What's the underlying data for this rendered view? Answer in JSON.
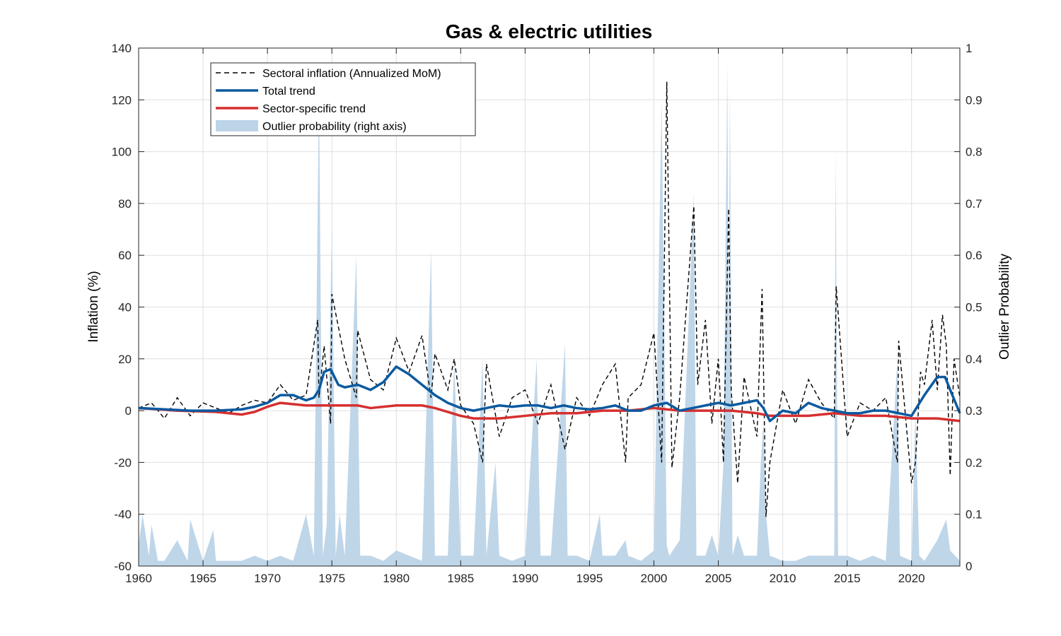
{
  "chart_data": {
    "type": "line",
    "title": "Gas & electric utilities",
    "xlabel": "",
    "ylabel": "Inflation (%)",
    "y2label": "Outlier Probability",
    "xlim": [
      1960,
      2023.75
    ],
    "ylim": [
      -60,
      140
    ],
    "y2lim": [
      0,
      1
    ],
    "xticks": [
      1960,
      1965,
      1970,
      1975,
      1980,
      1985,
      1990,
      1995,
      2000,
      2005,
      2010,
      2015,
      2020
    ],
    "yticks": [
      -60,
      -40,
      -20,
      0,
      20,
      40,
      60,
      80,
      100,
      120,
      140
    ],
    "y2ticks": [
      0,
      0.1,
      0.2,
      0.3,
      0.4,
      0.5,
      0.6,
      0.7,
      0.8,
      0.9,
      1
    ],
    "grid": true,
    "legend_position": "top-left",
    "legend": [
      {
        "label": "Sectoral inflation (Annualized MoM)",
        "style": "dashed",
        "color": "#000000"
      },
      {
        "label": "Total trend",
        "style": "solid",
        "color": "#0b5aa0"
      },
      {
        "label": "Sector-specific trend",
        "style": "solid",
        "color": "#d62f2f"
      },
      {
        "label": "Outlier probability (right axis)",
        "style": "area",
        "color": "#bcd4e8"
      }
    ],
    "colors": {
      "sectoral": "#000000",
      "total_trend": "#0b5aa0",
      "sector_trend": "#d62f2f",
      "outlier_area": "#bcd4e8"
    },
    "series": [
      {
        "name": "Total trend",
        "x": [
          1960,
          1962,
          1964,
          1966,
          1968,
          1969,
          1970,
          1971,
          1972,
          1973,
          1973.6,
          1974,
          1974.4,
          1974.9,
          1975.5,
          1976,
          1977,
          1978,
          1979,
          1980,
          1981,
          1982,
          1983,
          1984,
          1985,
          1986,
          1987,
          1988,
          1989,
          1990,
          1991,
          1992,
          1993,
          1994,
          1995,
          1996,
          1997,
          1998,
          1999,
          2000,
          2001,
          2002,
          2003,
          2004,
          2005,
          2006,
          2007,
          2008,
          2008.5,
          2009,
          2010,
          2011,
          2012,
          2013,
          2014,
          2015,
          2016,
          2017,
          2018,
          2019,
          2020,
          2021,
          2022,
          2022.6,
          2023,
          2023.75
        ],
        "y": [
          1,
          0.5,
          0,
          0,
          0.5,
          1.5,
          3,
          6,
          6,
          4,
          5,
          8,
          15,
          16,
          10,
          9,
          10,
          8,
          11,
          17,
          14,
          10,
          6,
          3,
          1,
          0,
          1,
          2,
          1.5,
          2,
          2,
          1,
          2,
          1,
          0.5,
          1,
          2,
          0,
          0,
          2,
          3,
          0,
          1,
          2,
          3,
          2,
          3,
          4,
          1,
          -4,
          0,
          -1,
          3,
          1,
          0,
          -1,
          -1,
          0,
          0,
          -1,
          -2,
          6,
          13,
          13,
          8,
          -1
        ]
      },
      {
        "name": "Sector-specific trend",
        "x": [
          1960,
          1963,
          1966,
          1968,
          1969,
          1970,
          1971,
          1973,
          1975,
          1977,
          1978,
          1980,
          1982,
          1983,
          1985,
          1986,
          1988,
          1990,
          1992,
          1994,
          1996,
          1998,
          2000,
          2002,
          2004,
          2006,
          2008,
          2009,
          2012,
          2014,
          2016,
          2018,
          2020,
          2022,
          2023.75
        ],
        "y": [
          1,
          0,
          -0.5,
          -1.5,
          -0.5,
          1.5,
          3,
          2,
          2,
          2,
          1,
          2,
          2,
          1,
          -2,
          -3,
          -3,
          -2,
          -1,
          -1,
          0,
          0,
          1,
          0,
          0,
          0,
          -1,
          -2,
          -2,
          -1,
          -2,
          -2,
          -3,
          -3,
          -4
        ]
      },
      {
        "name": "Sectoral inflation (Annualized MoM)",
        "x": [
          1960,
          1961,
          1962,
          1963,
          1964,
          1965,
          1966,
          1967,
          1968,
          1969,
          1970,
          1971,
          1972,
          1973,
          1973.9,
          1974,
          1974.4,
          1974.9,
          1975,
          1976,
          1976.9,
          1977,
          1978,
          1979,
          1980,
          1981,
          1982,
          1982.7,
          1983,
          1984,
          1984.5,
          1985,
          1986,
          1986.7,
          1987,
          1988,
          1989,
          1990,
          1991,
          1992,
          1993.1,
          1994,
          1995,
          1996,
          1997,
          1997.8,
          1998,
          1999,
          2000,
          2000.6,
          2001,
          2001.4,
          2002,
          2003.1,
          2003.4,
          2004,
          2004.5,
          2005,
          2005.4,
          2005.8,
          2006,
          2006.5,
          2007,
          2008,
          2008.4,
          2008.7,
          2009,
          2010,
          2011,
          2012,
          2013,
          2014,
          2014.15,
          2015,
          2016,
          2017,
          2018,
          2018.9,
          2019,
          2020,
          2020.3,
          2020.7,
          2021,
          2021.6,
          2022,
          2022.4,
          2022.7,
          2023,
          2023.3,
          2023.75
        ],
        "y": [
          1,
          3,
          -3,
          5,
          -2,
          3,
          1,
          -1,
          2,
          4,
          3,
          10,
          4,
          6,
          35,
          5,
          25,
          -5,
          45,
          20,
          5,
          31,
          12,
          8,
          28,
          15,
          29,
          5,
          22,
          8,
          20,
          2,
          -5,
          -20,
          18,
          -10,
          5,
          8,
          -5,
          10,
          -15,
          5,
          -2,
          10,
          18,
          -20,
          5,
          10,
          30,
          -20,
          127,
          -22,
          5,
          79,
          10,
          35,
          -5,
          20,
          -20,
          78,
          8,
          -28,
          13,
          -10,
          47,
          -41,
          -20,
          8,
          -5,
          12,
          3,
          -3,
          48,
          -10,
          3,
          0,
          5,
          -20,
          27,
          -28,
          -20,
          15,
          10,
          35,
          8,
          37,
          25,
          -25,
          20,
          5
        ]
      },
      {
        "name": "Outlier probability (right axis)",
        "x": [
          1960,
          1960.3,
          1960.8,
          1961,
          1961.5,
          1962,
          1963,
          1963.8,
          1964,
          1965,
          1965.8,
          1966,
          1967,
          1968,
          1969,
          1970,
          1971,
          1972,
          1973,
          1973.6,
          1974,
          1974.3,
          1974.6,
          1975,
          1975.3,
          1975.6,
          1976,
          1976.9,
          1977.2,
          1978,
          1979,
          1980,
          1981,
          1982,
          1982.7,
          1983,
          1984,
          1984.5,
          1985,
          1986,
          1986.7,
          1987,
          1987.7,
          1988,
          1989,
          1990,
          1990.9,
          1991.2,
          1992,
          1993.1,
          1993.3,
          1994,
          1995,
          1995.8,
          1996,
          1997,
          1997.8,
          1998,
          1999,
          2000,
          2000.6,
          2001,
          2001.2,
          2002,
          2003.1,
          2003.3,
          2004,
          2004.5,
          2005,
          2005.4,
          2005.7,
          2005.8,
          2005.9,
          2006.1,
          2006.5,
          2007,
          2008,
          2008.3,
          2008.5,
          2008.7,
          2009,
          2010,
          2011,
          2012,
          2013,
          2014,
          2014.1,
          2014.3,
          2015,
          2016,
          2017,
          2018,
          2018.9,
          2019.1,
          2020,
          2020.3,
          2020.6,
          2021,
          2022,
          2022.7,
          2023,
          2023.75
        ],
        "y": [
          0.04,
          0.1,
          0.02,
          0.08,
          0.01,
          0.01,
          0.05,
          0.01,
          0.09,
          0.01,
          0.07,
          0.01,
          0.01,
          0.01,
          0.02,
          0.01,
          0.02,
          0.01,
          0.1,
          0.02,
          0.92,
          0.02,
          0.08,
          0.66,
          0.02,
          0.1,
          0.02,
          0.6,
          0.02,
          0.02,
          0.01,
          0.03,
          0.02,
          0.01,
          0.61,
          0.02,
          0.02,
          0.4,
          0.02,
          0.02,
          0.4,
          0.02,
          0.2,
          0.02,
          0.01,
          0.02,
          0.4,
          0.02,
          0.02,
          0.43,
          0.02,
          0.02,
          0.01,
          0.1,
          0.02,
          0.02,
          0.05,
          0.02,
          0.01,
          0.03,
          0.9,
          0.04,
          0.02,
          0.05,
          0.72,
          0.02,
          0.02,
          0.06,
          0.02,
          0.2,
          0.97,
          0.4,
          0.92,
          0.02,
          0.06,
          0.02,
          0.02,
          0.2,
          0.28,
          0.1,
          0.02,
          0.01,
          0.01,
          0.02,
          0.02,
          0.02,
          0.8,
          0.02,
          0.02,
          0.01,
          0.02,
          0.01,
          0.4,
          0.02,
          0.01,
          0.3,
          0.02,
          0.01,
          0.05,
          0.09,
          0.03,
          0.01
        ]
      }
    ]
  }
}
